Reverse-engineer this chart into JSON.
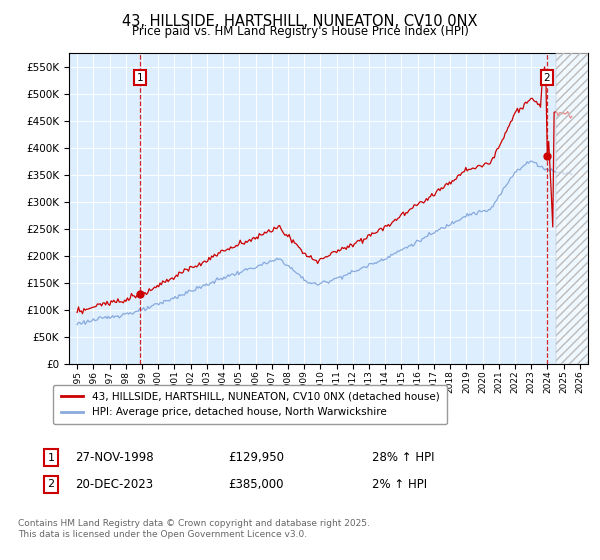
{
  "title": "43, HILLSIDE, HARTSHILL, NUNEATON, CV10 0NX",
  "subtitle": "Price paid vs. HM Land Registry's House Price Index (HPI)",
  "legend_line1": "43, HILLSIDE, HARTSHILL, NUNEATON, CV10 0NX (detached house)",
  "legend_line2": "HPI: Average price, detached house, North Warwickshire",
  "annotation1_date": "27-NOV-1998",
  "annotation1_price": "£129,950",
  "annotation1_hpi": "28% ↑ HPI",
  "annotation2_date": "20-DEC-2023",
  "annotation2_price": "£385,000",
  "annotation2_hpi": "2% ↑ HPI",
  "footnote1": "Contains HM Land Registry data © Crown copyright and database right 2025.",
  "footnote2": "This data is licensed under the Open Government Licence v3.0.",
  "red_color": "#cc0000",
  "blue_color": "#88aadd",
  "plot_bg": "#ddeeff",
  "marker1_x": 1998.9,
  "marker1_y": 129950,
  "marker2_x": 2023.97,
  "marker2_y": 385000,
  "hatch_start": 2024.5,
  "xlim_left": 1994.5,
  "xlim_right": 2026.5,
  "ylim_bottom": 0,
  "ylim_top": 575000,
  "yticks": [
    0,
    50000,
    100000,
    150000,
    200000,
    250000,
    300000,
    350000,
    400000,
    450000,
    500000,
    550000
  ]
}
